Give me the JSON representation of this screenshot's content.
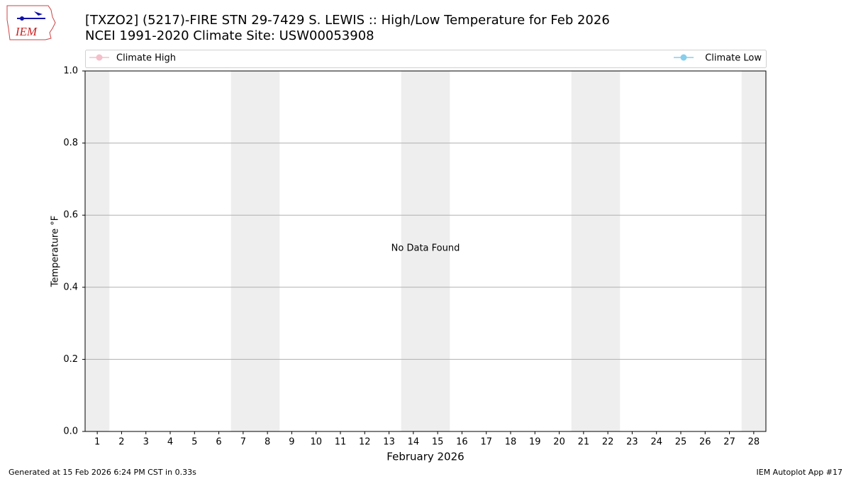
{
  "logo_text": "IEM",
  "chart_data": {
    "type": "line",
    "title": "[TXZO2] (5217)-FIRE STN 29-7429 S. LEWIS :: High/Low Temperature for Feb 2026",
    "subtitle": "NCEI 1991-2020 Climate Site: USW00053908",
    "annotation": "No Data Found",
    "x_label": "February 2026",
    "y_label": "Temperature °F",
    "x": [
      1,
      2,
      3,
      4,
      5,
      6,
      7,
      8,
      9,
      10,
      11,
      12,
      13,
      14,
      15,
      16,
      17,
      18,
      19,
      20,
      21,
      22,
      23,
      24,
      25,
      26,
      27,
      28
    ],
    "xlim": [
      0.5,
      28.5
    ],
    "xticks": [
      1,
      2,
      3,
      4,
      5,
      6,
      7,
      8,
      9,
      10,
      11,
      12,
      13,
      14,
      15,
      16,
      17,
      18,
      19,
      20,
      21,
      22,
      23,
      24,
      25,
      26,
      27,
      28
    ],
    "ylim": [
      0,
      1
    ],
    "yticks": [
      {
        "value": 0,
        "label": "0.0"
      },
      {
        "value": 0.2,
        "label": "0.2"
      },
      {
        "value": 0.4,
        "label": "0.4"
      },
      {
        "value": 0.6,
        "label": "0.6"
      },
      {
        "value": 0.8,
        "label": "0.8"
      },
      {
        "value": 1,
        "label": "1.0"
      }
    ],
    "grid": true,
    "shaded": {
      "x": [
        1,
        7,
        8,
        14,
        15,
        21,
        22,
        28
      ],
      "color": "#eeeeee"
    },
    "series": [
      {
        "name": "Climate High",
        "color": "#f4bfca",
        "values": [
          null,
          null,
          null,
          null,
          null,
          null,
          null,
          null,
          null,
          null,
          null,
          null,
          null,
          null,
          null,
          null,
          null,
          null,
          null,
          null,
          null,
          null,
          null,
          null,
          null,
          null,
          null,
          null
        ]
      },
      {
        "name": "Climate Low",
        "color": "#87ceeb",
        "values": [
          null,
          null,
          null,
          null,
          null,
          null,
          null,
          null,
          null,
          null,
          null,
          null,
          null,
          null,
          null,
          null,
          null,
          null,
          null,
          null,
          null,
          null,
          null,
          null,
          null,
          null,
          null,
          null
        ]
      }
    ]
  },
  "footer": {
    "left": "Generated at 15 Feb 2026 6:24 PM CST in 0.33s",
    "right": "IEM Autoplot App #17"
  }
}
